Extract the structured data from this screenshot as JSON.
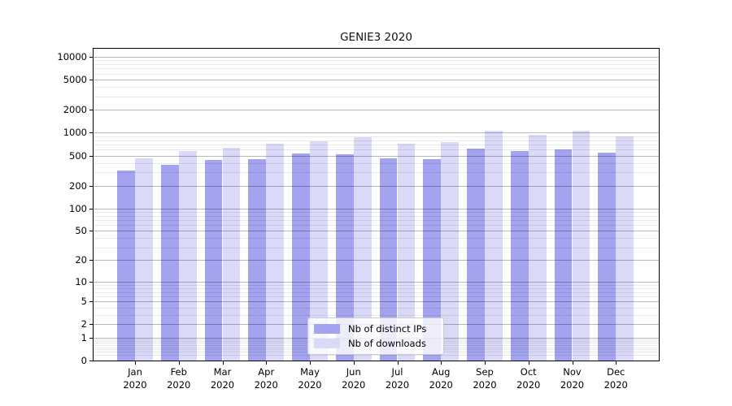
{
  "title": "GENIE3 2020",
  "chart_data": {
    "type": "bar",
    "title": "GENIE3 2020",
    "year_label": "2020",
    "categories": [
      "Jan",
      "Feb",
      "Mar",
      "Apr",
      "May",
      "Jun",
      "Jul",
      "Aug",
      "Sep",
      "Oct",
      "Nov",
      "Dec"
    ],
    "series": [
      {
        "name": "Nb of distinct IPs",
        "color": "#a3a3ef",
        "values": [
          320,
          375,
          435,
          445,
          535,
          525,
          465,
          450,
          620,
          570,
          600,
          550
        ]
      },
      {
        "name": "Nb of downloads",
        "color": "#dadaf8",
        "values": [
          460,
          580,
          635,
          720,
          775,
          880,
          720,
          750,
          1055,
          950,
          1065,
          900
        ]
      }
    ],
    "yscale": "log1p",
    "y_ticks": [
      0,
      1,
      2,
      5,
      10,
      20,
      50,
      100,
      200,
      500,
      1000,
      2000,
      5000,
      10000
    ],
    "ylim": [
      0,
      12800
    ],
    "grid": "horizontal major+minor, drawn above bars",
    "legend_position": "lower center"
  },
  "colors": {
    "background": "#ffffff",
    "bar_distinct_ips": "#a3a3ef",
    "bar_downloads": "#dadaf8",
    "grid_major": "rgba(0,0,0,0.28)",
    "grid_minor": "rgba(0,0,0,0.085)",
    "spine": "#000000",
    "text": "#000000",
    "legend_border": "#cccccc",
    "legend_background": "rgba(255,255,255,0.8)"
  }
}
